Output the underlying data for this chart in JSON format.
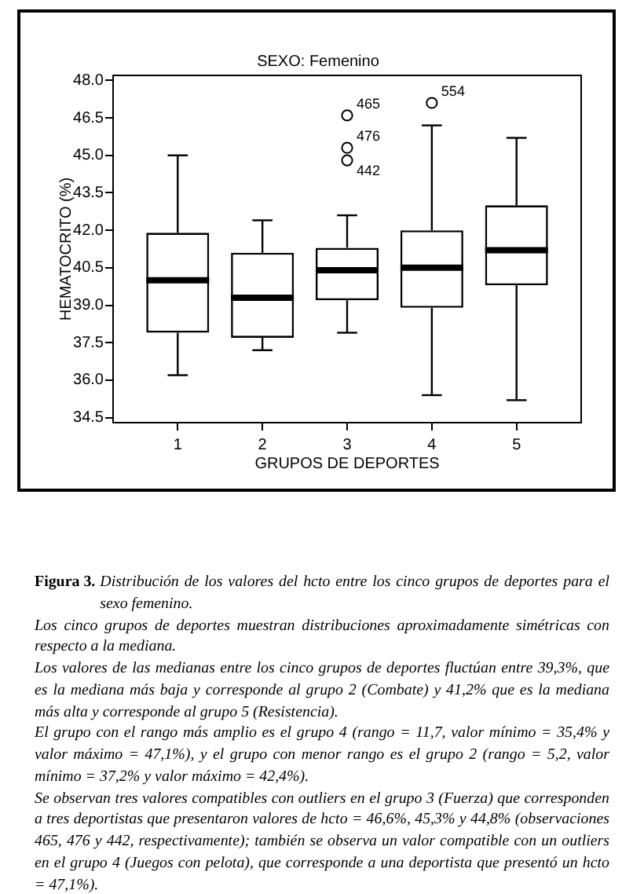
{
  "chart_data": {
    "type": "box",
    "title": "SEXO: Femenino",
    "xlabel": "GRUPOS DE DEPORTES",
    "ylabel": "HEMATOCRITO (%)",
    "categories": [
      "1",
      "2",
      "3",
      "4",
      "5"
    ],
    "boxes": [
      {
        "low": 36.2,
        "q1": 37.9,
        "median": 40.0,
        "q3": 41.9,
        "high": 45.0
      },
      {
        "low": 37.2,
        "q1": 37.7,
        "median": 39.3,
        "q3": 41.1,
        "high": 42.4
      },
      {
        "low": 37.9,
        "q1": 39.2,
        "median": 40.4,
        "q3": 41.3,
        "high": 42.6
      },
      {
        "low": 35.4,
        "q1": 38.9,
        "median": 40.5,
        "q3": 42.0,
        "high": 46.2
      },
      {
        "low": 35.2,
        "q1": 39.8,
        "median": 41.2,
        "q3": 43.0,
        "high": 45.7
      }
    ],
    "series": [
      {
        "type": "scatter",
        "x": [
          "3",
          "3",
          "3",
          "4"
        ],
        "values": [
          46.6,
          45.3,
          44.8,
          47.1
        ]
      }
    ],
    "ylim": [
      34.3,
      48.2
    ],
    "yticks": [
      34.5,
      {
        "value": 36,
        "label": "36.0"
      },
      37.5,
      {
        "value": 39,
        "label": "39.0"
      },
      40.5,
      {
        "value": 42,
        "label": "42.0"
      },
      43.5,
      {
        "value": 45,
        "label": "45.0"
      },
      46.5,
      {
        "value": 48,
        "label": "48.0"
      }
    ],
    "marker": "circle",
    "annotations": [
      {
        "text": "465",
        "x": "3",
        "y": 46.6
      },
      {
        "text": "476",
        "x": "3",
        "y": 45.3
      },
      {
        "text": "442",
        "x": "3",
        "y": 44.8
      },
      {
        "text": "554",
        "x": "4",
        "y": 47.1
      },
      "Figura 3.",
      "Distribución de los valores del hcto entre los cinco grupos de deportes para el sexo femenino.",
      "Los cinco grupos de deportes muestran distribuciones aproximadamente simétricas con respecto a la mediana.",
      "Los valores de las medianas entre los cinco grupos de deportes fluctúan entre 39,3%, que es la mediana más baja y corresponde al grupo 2 (Combate) y 41,2% que es la mediana más alta y corresponde al grupo 5 (Resistencia).",
      "El grupo con el rango más amplio es el grupo 4 (rango = 11,7, valor mínimo = 35,4% y valor máximo = 47,1%), y el grupo con menor rango es el grupo 2 (rango = 5,2, valor mínimo = 37,2% y valor máximo = 42,4%).",
      "Se observan tres valores compatibles con outliers en el grupo 3 (Fuerza) que corresponden a tres deportistas que presentaron valores de hcto = 46,6%, 45,3% y 44,8% (observaciones 465, 476 y 442, respectivamente); también se observa un valor compatible con un outliers en el grupo 4 (Juegos con pelota), que corresponde a una deportista que presentó un hcto = 47,1%)."
    ]
  }
}
